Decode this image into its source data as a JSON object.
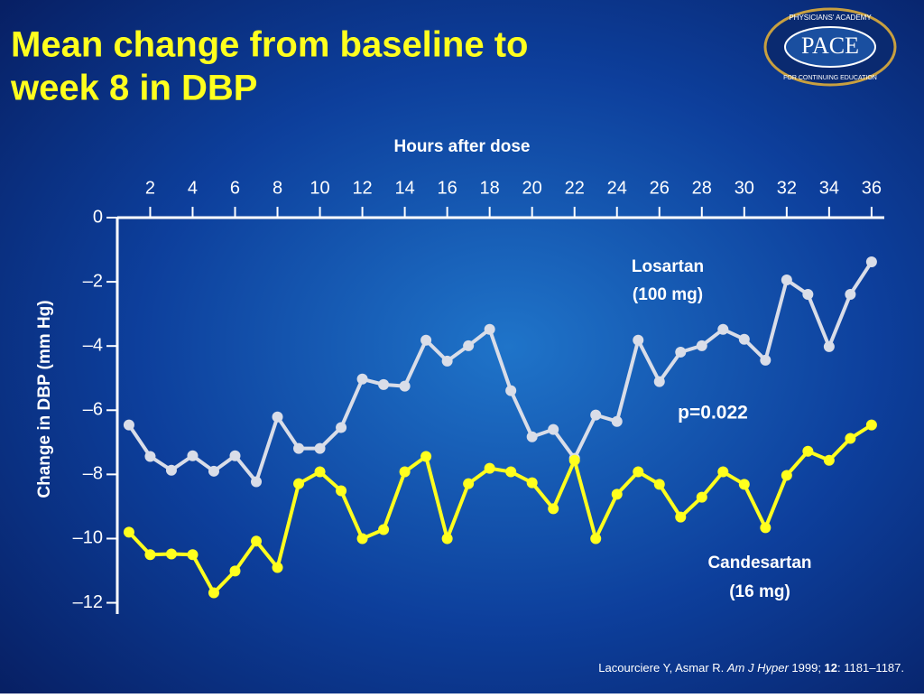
{
  "chart_data": {
    "type": "line",
    "title": [
      "Mean change from baseline to",
      "week 8 in DBP"
    ],
    "x_label": "Hours after dose",
    "y_label": "Change in DBP (mm Hg)",
    "x": [
      1,
      2,
      3,
      4,
      5,
      6,
      7,
      8,
      9,
      10,
      11,
      12,
      13,
      14,
      15,
      16,
      17,
      18,
      19,
      20,
      21,
      22,
      23,
      24,
      25,
      26,
      27,
      28,
      29,
      30,
      31,
      32,
      33,
      34,
      35,
      36
    ],
    "xlim": [
      0.45,
      36.6
    ],
    "xticks": [
      2,
      4,
      6,
      8,
      10,
      12,
      14,
      16,
      18,
      20,
      22,
      24,
      26,
      28,
      30,
      32,
      34,
      36
    ],
    "ylim": [
      -12.35,
      0
    ],
    "yticks": [
      0,
      {
        "value": -2,
        "label": "–2"
      },
      {
        "value": -4,
        "label": "–4"
      },
      {
        "value": -6,
        "label": "–6"
      },
      {
        "value": -8,
        "label": "–8"
      },
      {
        "value": -10,
        "label": "–10"
      },
      {
        "value": -12,
        "label": "–12"
      }
    ],
    "series": [
      {
        "name": [
          "Losartan",
          "(100 mg)"
        ],
        "color": "#d9dde8",
        "values": [
          -6.46,
          -7.44,
          -7.87,
          -7.42,
          -7.9,
          -7.42,
          -8.23,
          -6.21,
          -7.19,
          -7.19,
          -6.54,
          -5.03,
          -5.2,
          -5.25,
          -3.82,
          -4.47,
          -3.99,
          -3.48,
          -5.39,
          -6.83,
          -6.6,
          -7.5,
          -6.15,
          -6.35,
          -3.82,
          -5.11,
          -4.19,
          -3.99,
          -3.48,
          -3.79,
          -4.44,
          -1.94,
          -2.39,
          -4.02,
          -2.39,
          -1.38
        ]
      },
      {
        "name": [
          "Candesartan",
          "(16 mg)"
        ],
        "color": "#ffff1e",
        "values": [
          -9.8,
          -10.5,
          -10.48,
          -10.5,
          -11.69,
          -11.01,
          -10.08,
          -10.9,
          -8.29,
          -7.92,
          -8.51,
          -10.0,
          -9.72,
          -7.92,
          -7.44,
          -10.0,
          -8.29,
          -7.81,
          -7.92,
          -8.26,
          -9.07,
          -7.56,
          -10.0,
          -8.62,
          -7.92,
          -8.31,
          -9.33,
          -8.71,
          -7.92,
          -8.31,
          -9.66,
          -8.03,
          -7.28,
          -7.56,
          -6.88,
          -6.46
        ]
      }
    ],
    "annotation": "p=0.022",
    "citation": [
      "Lacourciere Y, Asmar R. ",
      "Am J Hyper",
      " 1999; ",
      "12",
      ": 1181–1187."
    ],
    "logo": {
      "text": "PACE",
      "top": "PHYSICIANS' ACADEMY",
      "bottom": "FOR CONTINUING EDUCATION"
    }
  }
}
